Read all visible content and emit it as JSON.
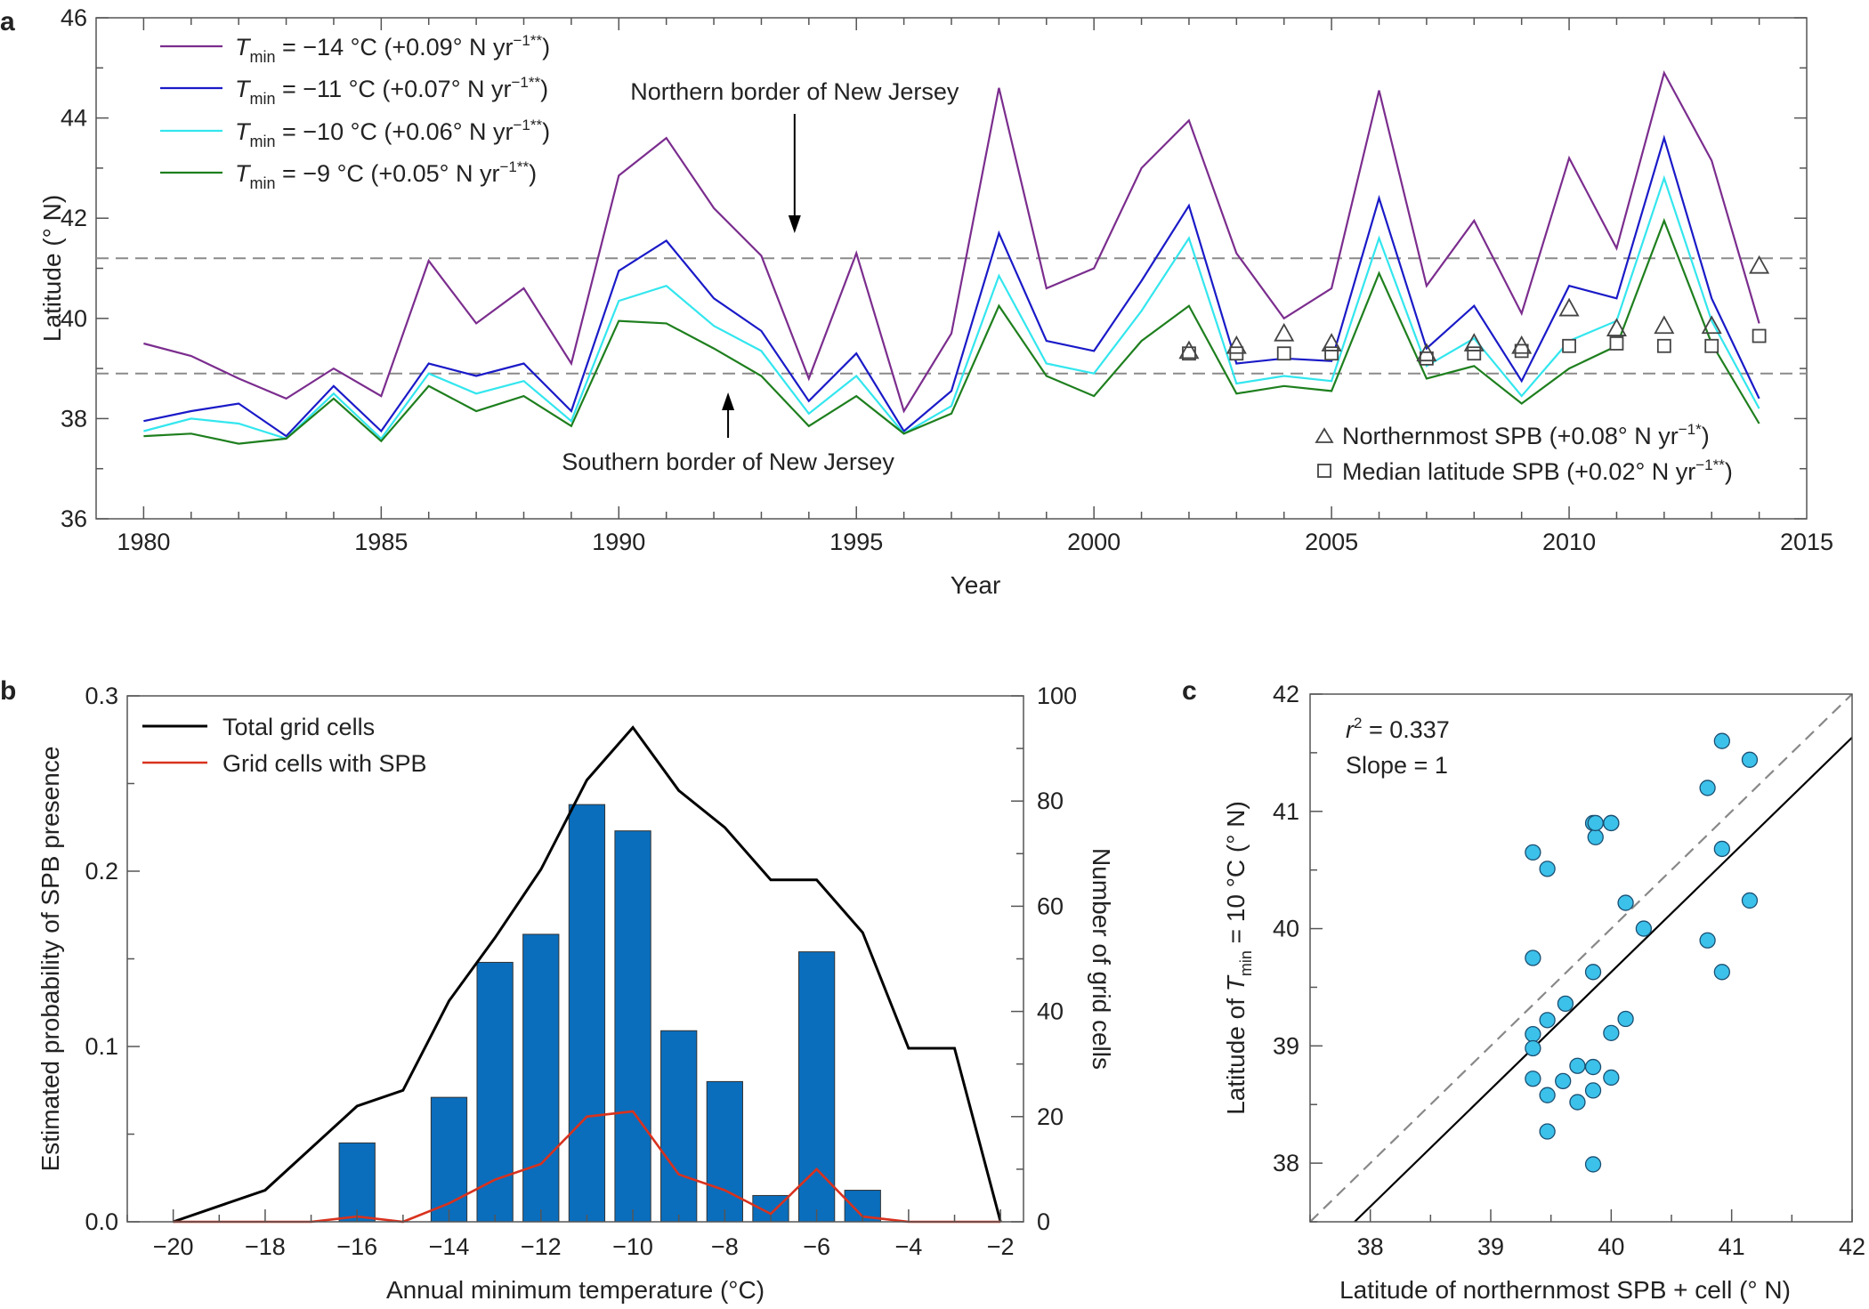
{
  "figure": {
    "panels": [
      {
        "id": "a",
        "letter": "a"
      },
      {
        "id": "b",
        "letter": "b"
      },
      {
        "id": "c",
        "letter": "c"
      }
    ]
  },
  "chart_data": [
    {
      "panel": "a",
      "type": "line",
      "xlabel": "Year",
      "ylabel": "Latitude (° N)",
      "xlim": [
        1979,
        2015
      ],
      "ylim": [
        36,
        46
      ],
      "xticks": [
        1980,
        1985,
        1990,
        1995,
        2000,
        2005,
        2010,
        2015
      ],
      "yticks": [
        36,
        38,
        40,
        42,
        44,
        46
      ],
      "x": [
        1980,
        1981,
        1982,
        1983,
        1984,
        1985,
        1986,
        1987,
        1988,
        1989,
        1990,
        1991,
        1992,
        1993,
        1994,
        1995,
        1996,
        1997,
        1998,
        1999,
        2000,
        2001,
        2002,
        2003,
        2004,
        2005,
        2006,
        2007,
        2008,
        2009,
        2010,
        2011,
        2012,
        2013,
        2014
      ],
      "series": [
        {
          "name": "T_min = −14 °C (+0.09° N yr−1**)",
          "label_var": "T",
          "label_sub": "min",
          "label_main": " = −14 °C (+0.09° N yr",
          "label_sup": "−1**",
          "label_end": ")",
          "color": "#7B2D8E",
          "values": [
            39.5,
            39.25,
            38.8,
            38.4,
            39.0,
            38.45,
            41.15,
            39.9,
            40.6,
            39.1,
            42.85,
            43.6,
            42.2,
            41.25,
            38.8,
            41.3,
            38.15,
            39.7,
            44.6,
            40.6,
            41.0,
            43.0,
            43.95,
            41.3,
            40.0,
            40.6,
            44.55,
            40.65,
            41.95,
            40.1,
            43.2,
            41.4,
            44.9,
            43.15,
            39.9
          ]
        },
        {
          "name": "T_min = −11 °C (+0.07° N yr−1**)",
          "label_var": "T",
          "label_sub": "min",
          "label_main": " = −11 °C (+0.07° N yr",
          "label_sup": "−1**",
          "label_end": ")",
          "color": "#1A1AC8",
          "values": [
            37.95,
            38.15,
            38.3,
            37.65,
            38.65,
            37.75,
            39.1,
            38.85,
            39.1,
            38.15,
            40.95,
            41.55,
            40.4,
            39.75,
            38.35,
            39.3,
            37.75,
            38.55,
            41.7,
            39.55,
            39.35,
            40.75,
            42.25,
            39.1,
            39.2,
            39.15,
            42.4,
            39.4,
            40.25,
            38.75,
            40.65,
            40.4,
            43.6,
            40.4,
            38.4
          ]
        },
        {
          "name": "T_min = −10 °C (+0.06° N yr−1**)",
          "label_var": "T",
          "label_sub": "min",
          "label_main": " = −10 °C (+0.06° N yr",
          "label_sup": "−1**",
          "label_end": ")",
          "color": "#33E6EE",
          "values": [
            37.75,
            38.0,
            37.9,
            37.6,
            38.5,
            37.6,
            38.9,
            38.5,
            38.75,
            37.95,
            40.35,
            40.65,
            39.85,
            39.35,
            38.1,
            38.85,
            37.7,
            38.25,
            40.85,
            39.1,
            38.9,
            40.15,
            41.6,
            38.7,
            38.85,
            38.75,
            41.6,
            39.05,
            39.6,
            38.45,
            39.55,
            39.95,
            42.8,
            39.95,
            38.2
          ]
        },
        {
          "name": "T_min = −9 °C (+0.05° N yr−1**)",
          "label_var": "T",
          "label_sub": "min",
          "label_main": " = −9 °C (+0.05° N yr",
          "label_sup": "−1**",
          "label_end": ")",
          "color": "#1E7F1E",
          "values": [
            37.65,
            37.7,
            37.5,
            37.6,
            38.4,
            37.55,
            38.65,
            38.15,
            38.45,
            37.85,
            39.95,
            39.9,
            39.4,
            38.85,
            37.85,
            38.45,
            37.7,
            38.1,
            40.25,
            38.85,
            38.45,
            39.55,
            40.25,
            38.5,
            38.65,
            38.55,
            40.9,
            38.8,
            39.05,
            38.3,
            39.0,
            39.45,
            41.95,
            39.5,
            37.9
          ]
        }
      ],
      "markers": [
        {
          "name": "Northernmost SPB (+0.08° N yr−1*)",
          "label_main": "Northernmost SPB (+0.08° N yr",
          "label_sup": "−1*",
          "label_end": ")",
          "shape": "triangle",
          "x": [
            2002,
            2003,
            2004,
            2005,
            2007,
            2008,
            2009,
            2010,
            2011,
            2012,
            2013,
            2014
          ],
          "values": [
            39.35,
            39.45,
            39.7,
            39.5,
            39.3,
            39.5,
            39.45,
            40.2,
            39.8,
            39.85,
            39.85,
            41.05
          ]
        },
        {
          "name": "Median latitude SPB (+0.02° N yr−1**)",
          "label_main": "Median latitude SPB (+0.02° N yr",
          "label_sup": "−1**",
          "label_end": ")",
          "shape": "square",
          "x": [
            2002,
            2003,
            2004,
            2005,
            2007,
            2008,
            2009,
            2010,
            2011,
            2012,
            2013,
            2014
          ],
          "values": [
            39.3,
            39.3,
            39.3,
            39.3,
            39.2,
            39.3,
            39.35,
            39.45,
            39.5,
            39.45,
            39.45,
            39.65
          ]
        }
      ],
      "reference_lines": [
        {
          "value": 41.2,
          "label": "Northern border of New Jersey",
          "arrow": "down",
          "arrow_x": 1993.7
        },
        {
          "value": 38.9,
          "label": "Southern border of New Jersey",
          "arrow": "up",
          "arrow_x": 1992.3
        }
      ],
      "grid": false,
      "legend_position": "top-left"
    },
    {
      "panel": "b",
      "type": "bar",
      "xlabel": "Annual minimum temperature (°C)",
      "ylabel": "Estimated probability of SPB presence",
      "y2label": "Number of grid cells",
      "xlim": [
        -21,
        -1.5
      ],
      "ylim": [
        0,
        0.3
      ],
      "y2lim": [
        0,
        100
      ],
      "xticks": [
        -20,
        -18,
        -16,
        -14,
        -12,
        -10,
        -8,
        -6,
        -4,
        -2
      ],
      "xtick_labels": [
        "−20",
        "−18",
        "−16",
        "−14",
        "−12",
        "−10",
        "−8",
        "−6",
        "−4",
        "−2"
      ],
      "yticks": [
        0.0,
        0.1,
        0.2,
        0.3
      ],
      "ytick_labels": [
        "0.0",
        "0.1",
        "0.2",
        "0.3"
      ],
      "y2ticks": [
        0,
        20,
        40,
        60,
        80,
        100
      ],
      "bars": {
        "color": "#0A6EBD",
        "x": [
          -16,
          -14,
          -13,
          -12,
          -11,
          -10,
          -9,
          -8,
          -7,
          -6,
          -5
        ],
        "values": [
          0.045,
          0.071,
          0.148,
          0.164,
          0.238,
          0.223,
          0.109,
          0.08,
          0.015,
          0.154,
          0.018
        ]
      },
      "series": [
        {
          "name": "Total grid cells",
          "color": "#000000",
          "axis": "right",
          "x": [
            -20,
            -18,
            -16,
            -15,
            -14,
            -13,
            -12,
            -11,
            -10,
            -9,
            -8,
            -7,
            -6,
            -5,
            -4,
            -3,
            -2
          ],
          "values": [
            0,
            6,
            22,
            25,
            42,
            54,
            67,
            84,
            94,
            82,
            75,
            65,
            65,
            55,
            33,
            33,
            0
          ]
        },
        {
          "name": "Grid cells with SPB",
          "color": "#D8321E",
          "axis": "right",
          "x": [
            -20,
            -17,
            -16,
            -15,
            -14,
            -13,
            -12,
            -11,
            -10,
            -9,
            -8,
            -7,
            -6,
            -5,
            -4,
            -2
          ],
          "values": [
            0,
            0,
            1,
            0,
            3.5,
            8,
            11,
            20,
            21,
            9,
            6,
            1.5,
            10,
            1,
            0,
            0
          ]
        }
      ],
      "grid": false,
      "legend_position": "top-left"
    },
    {
      "panel": "c",
      "type": "scatter",
      "xlabel": "Latitude of northernmost SPB + cell (° N)",
      "ylabel_pre": "Latitude of ",
      "ylabel_var": "T",
      "ylabel_sub": "min",
      "ylabel_post": " = 10 °C (° N)",
      "xlim": [
        37.5,
        42
      ],
      "ylim": [
        37.5,
        42
      ],
      "xticks": [
        38,
        39,
        40,
        41,
        42
      ],
      "yticks": [
        38,
        39,
        40,
        41,
        42
      ],
      "points": {
        "color": "#3BC1EA",
        "x": [
          39.35,
          39.35,
          39.35,
          39.35,
          39.35,
          39.47,
          39.47,
          39.47,
          39.47,
          39.6,
          39.62,
          39.72,
          39.72,
          39.85,
          39.85,
          39.85,
          39.85,
          39.85,
          39.87,
          39.87,
          40.0,
          40.0,
          40.0,
          40.0,
          40.12,
          40.12,
          40.27,
          40.8,
          40.8,
          40.92,
          40.92,
          40.92,
          41.15,
          41.15
        ],
        "y": [
          40.65,
          39.75,
          39.1,
          38.98,
          38.72,
          40.51,
          39.22,
          38.58,
          38.27,
          38.7,
          39.36,
          38.83,
          38.52,
          39.63,
          38.82,
          38.62,
          37.99,
          40.9,
          40.78,
          40.9,
          39.11,
          38.73,
          40.9,
          40.9,
          40.22,
          39.23,
          40.0,
          41.2,
          39.9,
          41.6,
          40.68,
          39.63,
          41.44,
          40.24
        ]
      },
      "lines": [
        {
          "name": "one-to-one",
          "style": "dashed",
          "color": "#888888",
          "x": [
            37.5,
            42
          ],
          "y": [
            37.5,
            42
          ]
        },
        {
          "name": "fit",
          "style": "solid",
          "color": "#000000",
          "x": [
            37.87,
            42
          ],
          "y": [
            37.5,
            41.63
          ]
        }
      ],
      "annotations": {
        "r2_label": "r",
        "r2_sup": "2",
        "r2_value": " = 0.337",
        "slope": "Slope = 1"
      },
      "grid": false
    }
  ]
}
